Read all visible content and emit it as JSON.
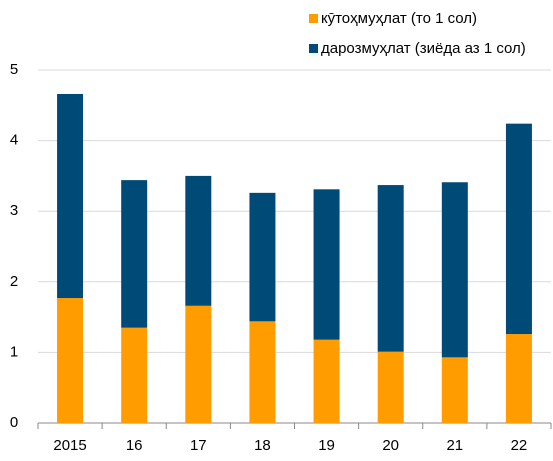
{
  "chart_data": {
    "type": "stacked_bar",
    "categories": [
      "2015",
      "16",
      "17",
      "18",
      "19",
      "20",
      "21",
      "22"
    ],
    "series": [
      {
        "name": "кӯтоҳмуҳлат (то 1 сол)",
        "color": "#ff9c00",
        "values": [
          1.77,
          1.35,
          1.66,
          1.44,
          1.18,
          1.01,
          0.93,
          1.26
        ]
      },
      {
        "name": "дарозмуҳлат (зиёда аз 1 сол)",
        "color": "#004a77",
        "values": [
          2.89,
          2.09,
          1.84,
          1.82,
          2.13,
          2.36,
          2.48,
          2.98
        ]
      }
    ],
    "ylim": [
      0,
      5
    ],
    "yticks": [
      0,
      1,
      2,
      3,
      4,
      5
    ],
    "grid": true
  }
}
